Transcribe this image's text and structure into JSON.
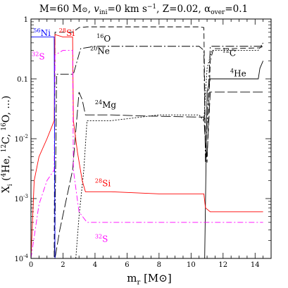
{
  "chart_data": {
    "type": "line",
    "title": "M=60 M⊙, vᵢₙᵢ=0 km s⁻¹, Z=0.02, αₒᵥₑᵣ=0.1",
    "title_parts": {
      "a": "M=60 M",
      "sun": "⊙",
      "b": ", ",
      "v": "v",
      "v_sub": "ini",
      "c": "=0  km s",
      "exp": "−1",
      "d": ", Z=0.02, ",
      "alpha": "α",
      "alpha_sub": "over",
      "e": "=0.1"
    },
    "xlabel": "m_r [M⊙]",
    "xlabel_parts": {
      "m": "m",
      "sub": "r",
      "rest": " [M⊙]"
    },
    "ylabel": "X_i (4He, 12C, 16O, ...)",
    "ylabel_parts": {
      "x": "X",
      "sub": "i",
      "open": " (",
      "he_mass": "4",
      "he": "He, ",
      "c_mass": "12",
      "c": "C, ",
      "o_mass": "16",
      "o": "O, ...)"
    },
    "xlim": [
      0,
      15
    ],
    "ylim_log10": [
      -4,
      0
    ],
    "yscale": "log",
    "x_ticks": [
      "0",
      "2",
      "4",
      "6",
      "8",
      "10",
      "12",
      "14"
    ],
    "x_tick_values": [
      0,
      2,
      4,
      6,
      8,
      10,
      12,
      14
    ],
    "y_ticks": [
      "10⁻⁴",
      "10⁻³",
      "10⁻²",
      "0.1",
      "1"
    ],
    "y_tick_exp": [
      -4,
      -3,
      -2,
      -1,
      0
    ],
    "y_tick_labels": [
      {
        "base": "10",
        "exp": "-4"
      },
      {
        "base": "10",
        "exp": "-3"
      },
      {
        "base": "10",
        "exp": "-2"
      },
      {
        "text": "0.1"
      },
      {
        "text": "1"
      }
    ],
    "grid": false,
    "series": [
      {
        "name": "16O",
        "label_mass": "16",
        "label_el": "O",
        "color": "#000000",
        "dash": "8,4",
        "points": [
          [
            0,
            0.0001
          ],
          [
            1.45,
            0.0001
          ],
          [
            1.5,
            0.6
          ],
          [
            2.0,
            0.6
          ],
          [
            2.6,
            0.6
          ],
          [
            3.0,
            0.72
          ],
          [
            3.5,
            0.74
          ],
          [
            6,
            0.74
          ],
          [
            10.5,
            0.74
          ],
          [
            10.8,
            0.72
          ],
          [
            10.9,
            0.008
          ],
          [
            11.0,
            0.004
          ],
          [
            11.2,
            0.2
          ],
          [
            11.4,
            0.32
          ],
          [
            12.5,
            0.32
          ],
          [
            14.3,
            0.33
          ],
          [
            14.5,
            0.35
          ]
        ]
      },
      {
        "name": "20Ne",
        "label_mass": "20",
        "label_el": "Ne",
        "color": "#000000",
        "dash": "12,3,2,3",
        "points": [
          [
            0,
            0.0001
          ],
          [
            1.45,
            0.0001
          ],
          [
            1.5,
            0.0003
          ],
          [
            1.6,
            0.12
          ],
          [
            2.2,
            0.12
          ],
          [
            2.6,
            0.12
          ],
          [
            2.65,
            0.12
          ],
          [
            3.1,
            0.32
          ],
          [
            4,
            0.35
          ],
          [
            7,
            0.35
          ],
          [
            10.5,
            0.35
          ],
          [
            10.8,
            0.3
          ],
          [
            10.9,
            0.004
          ],
          [
            11.2,
            0.35
          ],
          [
            12,
            0.35
          ],
          [
            14.2,
            0.35
          ],
          [
            14.5,
            0.35
          ]
        ]
      },
      {
        "name": "24Mg",
        "label_mass": "24",
        "label_el": "Mg",
        "color": "#000000",
        "dash": "14,4",
        "points": [
          [
            0,
            0.0001
          ],
          [
            1.45,
            0.0001
          ],
          [
            1.5,
            0.0001
          ],
          [
            1.8,
            0.0003
          ],
          [
            2.6,
            0.003
          ],
          [
            3.0,
            0.06
          ],
          [
            3.2,
            0.045
          ],
          [
            3.4,
            0.025
          ],
          [
            5,
            0.025
          ],
          [
            7,
            0.024
          ],
          [
            10.5,
            0.023
          ],
          [
            10.8,
            0.023
          ],
          [
            10.9,
            0.008
          ],
          [
            11.0,
            0.005
          ],
          [
            11.2,
            0.06
          ],
          [
            12,
            0.06
          ],
          [
            14.2,
            0.06
          ],
          [
            14.5,
            0.06
          ]
        ]
      },
      {
        "name": "12C",
        "label_mass": "12",
        "label_el": "C",
        "color": "#000000",
        "dash": "2,2",
        "points": [
          [
            0,
            0.0001
          ],
          [
            2.6,
            0.0001
          ],
          [
            2.8,
            0.0001
          ],
          [
            3.0,
            0.0005
          ],
          [
            3.3,
            0.003
          ],
          [
            3.5,
            0.02
          ],
          [
            5,
            0.02
          ],
          [
            8,
            0.025
          ],
          [
            10.5,
            0.025
          ],
          [
            10.8,
            0.02
          ],
          [
            11.0,
            0.15
          ],
          [
            11.3,
            0.3
          ],
          [
            12,
            0.3
          ],
          [
            14.2,
            0.3
          ],
          [
            14.5,
            0.4
          ]
        ]
      },
      {
        "name": "4He",
        "label_mass": "4",
        "label_el": "He",
        "color": "#000000",
        "dash": "",
        "points": [
          [
            0,
            0.0001
          ],
          [
            10.8,
            0.0001
          ],
          [
            10.85,
            0.0001
          ],
          [
            11.0,
            0.06
          ],
          [
            11.2,
            0.1
          ],
          [
            12,
            0.1
          ],
          [
            14.2,
            0.1
          ],
          [
            14.3,
            0.15
          ],
          [
            14.5,
            0.2
          ]
        ]
      },
      {
        "name": "28Si",
        "label_mass": "28",
        "label_el": "Si",
        "color": "#ff0000",
        "dash": "",
        "points": [
          [
            0,
            0.0001
          ],
          [
            0.2,
            0.002
          ],
          [
            0.5,
            0.005
          ],
          [
            1.0,
            0.01
          ],
          [
            1.45,
            0.02
          ],
          [
            1.5,
            0.55
          ],
          [
            2.0,
            0.5
          ],
          [
            2.4,
            0.5
          ],
          [
            2.6,
            0.5
          ],
          [
            2.65,
            0.02
          ],
          [
            2.9,
            0.006
          ],
          [
            3.2,
            0.002
          ],
          [
            3.4,
            0.0013
          ],
          [
            5,
            0.0013
          ],
          [
            8,
            0.0012
          ],
          [
            10.5,
            0.0012
          ],
          [
            10.8,
            0.0012
          ],
          [
            10.9,
            0.0007
          ],
          [
            11.2,
            0.0006
          ],
          [
            12,
            0.0006
          ],
          [
            14.5,
            0.0006
          ]
        ]
      },
      {
        "name": "32S",
        "label_mass": "32",
        "label_el": "S",
        "color": "#ff00ff",
        "dash": "8,3,2,3",
        "points": [
          [
            0,
            0.0001
          ],
          [
            0.5,
            0.0008
          ],
          [
            1.0,
            0.002
          ],
          [
            1.45,
            0.003
          ],
          [
            1.5,
            0.25
          ],
          [
            2.0,
            0.3
          ],
          [
            2.6,
            0.3
          ],
          [
            2.65,
            0.003
          ],
          [
            3.0,
            0.0006
          ],
          [
            3.5,
            0.0004
          ],
          [
            6,
            0.0004
          ],
          [
            10.8,
            0.0004
          ],
          [
            11.0,
            0.0004
          ],
          [
            13,
            0.0004
          ],
          [
            14.5,
            0.0004
          ]
        ]
      },
      {
        "name": "56Ni",
        "label_mass": "56",
        "label_el": "Ni",
        "color": "#0000ff",
        "dash": "",
        "points": [
          [
            0,
            0.5
          ],
          [
            0.5,
            0.5
          ],
          [
            1.0,
            0.5
          ],
          [
            1.45,
            0.5
          ],
          [
            1.5,
            0.0001
          ]
        ]
      }
    ],
    "annotations": [
      {
        "series": "56Ni",
        "mass": "56",
        "el": "Ni",
        "x": 0.15,
        "y": 0.52
      },
      {
        "series": "28Si",
        "mass": "28",
        "el": "Si",
        "x": 1.75,
        "y": 0.52
      },
      {
        "series": "16O",
        "mass": "16",
        "el": "O",
        "x": 4.1,
        "y": 0.42
      },
      {
        "series": "20Ne",
        "mass": "20",
        "el": "Ne",
        "x": 3.7,
        "y": 0.26
      },
      {
        "series": "32S",
        "mass": "32",
        "el": "S",
        "x": 0.05,
        "y": 0.21
      },
      {
        "series": "12C",
        "mass": "12",
        "el": "C",
        "x": 11.95,
        "y": 0.24
      },
      {
        "series": "4He",
        "mass": "4",
        "el": "He",
        "x": 12.45,
        "y": 0.11
      },
      {
        "series": "24Mg",
        "mass": "24",
        "el": "Mg",
        "x": 4.0,
        "y": 0.033
      },
      {
        "series": "28Si",
        "mass": "28",
        "el": "Si",
        "x": 4.0,
        "y": 0.0016
      },
      {
        "series": "32S",
        "mass": "32",
        "el": "S",
        "x": 4.0,
        "y": 0.00019
      }
    ]
  }
}
